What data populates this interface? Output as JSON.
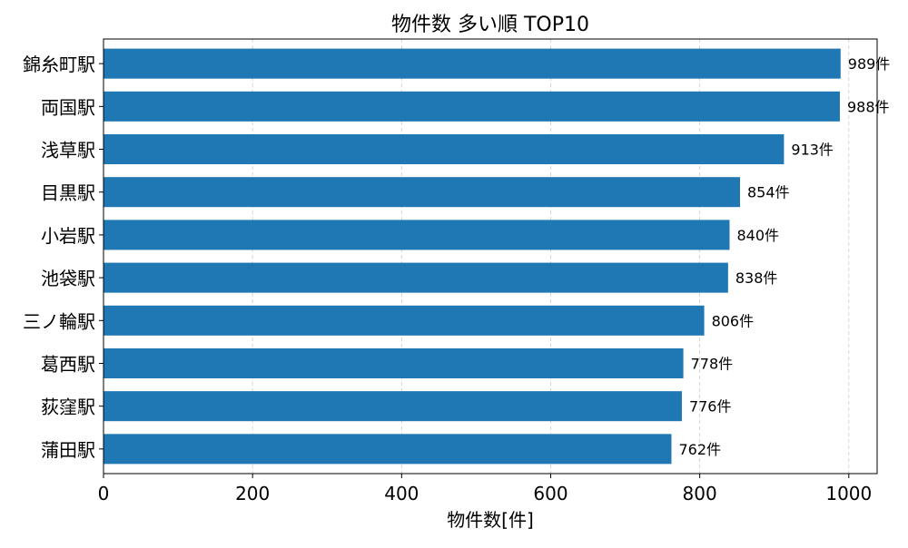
{
  "chart_data": {
    "type": "bar",
    "orientation": "horizontal",
    "title": "物件数 多い順 TOP10",
    "xlabel": "物件数[件]",
    "ylabel": "",
    "categories": [
      "錦糸町駅",
      "両国駅",
      "浅草駅",
      "目黒駅",
      "小岩駅",
      "池袋駅",
      "三ノ輪駅",
      "葛西駅",
      "荻窪駅",
      "蒲田駅"
    ],
    "values": [
      989,
      988,
      913,
      854,
      840,
      838,
      806,
      778,
      776,
      762
    ],
    "value_suffix": "件",
    "xlim": [
      0,
      1038
    ],
    "xticks": [
      0,
      200,
      400,
      600,
      800,
      1000
    ],
    "grid": "x-dashed",
    "bar_color": "#1f77b4",
    "grid_color": "#cccccc"
  }
}
